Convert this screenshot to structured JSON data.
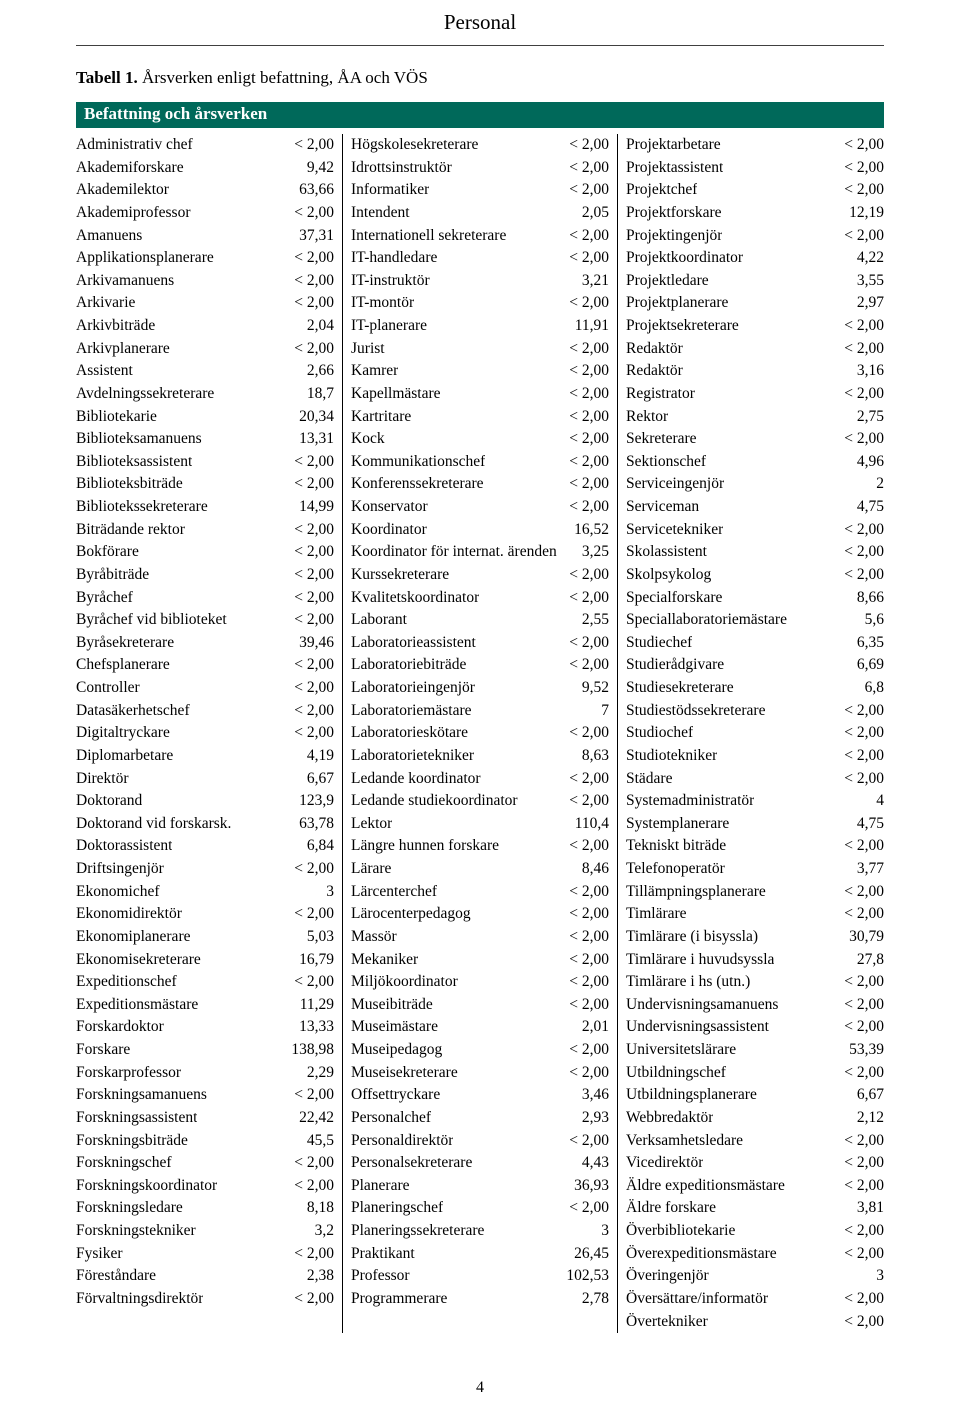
{
  "header": {
    "title": "Personal"
  },
  "caption": {
    "prefix": "Tabell 1.",
    "rest": " Årsverken enligt befattning, ÅA och VÖS"
  },
  "sectionTitle": "Befattning och årsverken",
  "footer": {
    "pageNumber": "4"
  },
  "columns": [
    [
      {
        "label": "Administrativ chef",
        "value": "< 2,00"
      },
      {
        "label": "Akademiforskare",
        "value": "9,42"
      },
      {
        "label": "Akademilektor",
        "value": "63,66"
      },
      {
        "label": "Akademiprofessor",
        "value": "< 2,00"
      },
      {
        "label": "Amanuens",
        "value": "37,31"
      },
      {
        "label": "Applikationsplanerare",
        "value": "< 2,00"
      },
      {
        "label": "Arkivamanuens",
        "value": "< 2,00"
      },
      {
        "label": "Arkivarie",
        "value": "< 2,00"
      },
      {
        "label": "Arkivbiträde",
        "value": "2,04"
      },
      {
        "label": "Arkivplanerare",
        "value": "< 2,00"
      },
      {
        "label": "Assistent",
        "value": "2,66"
      },
      {
        "label": "Avdelningssekreterare",
        "value": "18,7"
      },
      {
        "label": "Bibliotekarie",
        "value": "20,34"
      },
      {
        "label": "Biblioteksamanuens",
        "value": "13,31"
      },
      {
        "label": "Biblioteksassistent",
        "value": "< 2,00"
      },
      {
        "label": "Biblioteksbiträde",
        "value": "< 2,00"
      },
      {
        "label": "Bibliotekssekreterare",
        "value": "14,99"
      },
      {
        "label": "Biträdande rektor",
        "value": "< 2,00"
      },
      {
        "label": "Bokförare",
        "value": "< 2,00"
      },
      {
        "label": "Byråbiträde",
        "value": "< 2,00"
      },
      {
        "label": "Byråchef",
        "value": "< 2,00"
      },
      {
        "label": "Byråchef vid biblioteket",
        "value": "< 2,00"
      },
      {
        "label": "Byråsekreterare",
        "value": "39,46"
      },
      {
        "label": "Chefsplanerare",
        "value": "< 2,00"
      },
      {
        "label": "Controller",
        "value": "< 2,00"
      },
      {
        "label": "Datasäkerhetschef",
        "value": "< 2,00"
      },
      {
        "label": "Digitaltryckare",
        "value": "< 2,00"
      },
      {
        "label": "Diplomarbetare",
        "value": "4,19"
      },
      {
        "label": "Direktör",
        "value": "6,67"
      },
      {
        "label": "Doktorand",
        "value": "123,9"
      },
      {
        "label": "Doktorand vid forskarsk.",
        "value": "63,78"
      },
      {
        "label": "Doktorassistent",
        "value": "6,84"
      },
      {
        "label": "Driftsingenjör",
        "value": "< 2,00"
      },
      {
        "label": "Ekonomichef",
        "value": "3"
      },
      {
        "label": "Ekonomidirektör",
        "value": "< 2,00"
      },
      {
        "label": "Ekonomiplanerare",
        "value": "5,03"
      },
      {
        "label": "Ekonomisekreterare",
        "value": "16,79"
      },
      {
        "label": "Expeditionschef",
        "value": "< 2,00"
      },
      {
        "label": "Expeditionsmästare",
        "value": "11,29"
      },
      {
        "label": "Forskardoktor",
        "value": "13,33"
      },
      {
        "label": "Forskare",
        "value": "138,98"
      },
      {
        "label": "Forskarprofessor",
        "value": "2,29"
      },
      {
        "label": "Forskningsamanuens",
        "value": "< 2,00"
      },
      {
        "label": "Forskningsassistent",
        "value": "22,42"
      },
      {
        "label": "Forskningsbiträde",
        "value": "45,5"
      },
      {
        "label": "Forskningschef",
        "value": "< 2,00"
      },
      {
        "label": "Forskningskoordinator",
        "value": "< 2,00"
      },
      {
        "label": "Forskningsledare",
        "value": "8,18"
      },
      {
        "label": "Forskningstekniker",
        "value": "3,2"
      },
      {
        "label": "Fysiker",
        "value": "< 2,00"
      },
      {
        "label": "Föreståndare",
        "value": "2,38"
      },
      {
        "label": "Förvaltningsdirektör",
        "value": "< 2,00"
      }
    ],
    [
      {
        "label": "Högskolesekreterare",
        "value": "< 2,00"
      },
      {
        "label": "Idrottsinstruktör",
        "value": "< 2,00"
      },
      {
        "label": "Informatiker",
        "value": "< 2,00"
      },
      {
        "label": "Intendent",
        "value": "2,05"
      },
      {
        "label": "Internationell sekreterare",
        "value": "< 2,00"
      },
      {
        "label": "IT-handledare",
        "value": "< 2,00"
      },
      {
        "label": "IT-instruktör",
        "value": "3,21"
      },
      {
        "label": "IT-montör",
        "value": "< 2,00"
      },
      {
        "label": "IT-planerare",
        "value": "11,91"
      },
      {
        "label": "Jurist",
        "value": "< 2,00"
      },
      {
        "label": "Kamrer",
        "value": "< 2,00"
      },
      {
        "label": "Kapellmästare",
        "value": "< 2,00"
      },
      {
        "label": "Kartritare",
        "value": "< 2,00"
      },
      {
        "label": "Kock",
        "value": "< 2,00"
      },
      {
        "label": "Kommunikationschef",
        "value": "< 2,00"
      },
      {
        "label": "Konferenssekreterare",
        "value": "< 2,00"
      },
      {
        "label": "Konservator",
        "value": "< 2,00"
      },
      {
        "label": "Koordinator",
        "value": "16,52"
      },
      {
        "label": "Koordinator för internat. ärenden",
        "value": "3,25"
      },
      {
        "label": "Kurssekreterare",
        "value": "< 2,00"
      },
      {
        "label": "Kvalitetskoordinator",
        "value": "< 2,00"
      },
      {
        "label": "Laborant",
        "value": "2,55"
      },
      {
        "label": "Laboratorieassistent",
        "value": "< 2,00"
      },
      {
        "label": "Laboratoriebiträde",
        "value": "< 2,00"
      },
      {
        "label": "Laboratorieingenjör",
        "value": "9,52"
      },
      {
        "label": "Laboratoriemästare",
        "value": "7"
      },
      {
        "label": "Laboratorieskötare",
        "value": "< 2,00"
      },
      {
        "label": "Laboratorietekniker",
        "value": "8,63"
      },
      {
        "label": "Ledande koordinator",
        "value": "< 2,00"
      },
      {
        "label": "Ledande studiekoordinator",
        "value": "< 2,00"
      },
      {
        "label": "Lektor",
        "value": "110,4"
      },
      {
        "label": "Längre hunnen forskare",
        "value": "< 2,00"
      },
      {
        "label": "Lärare",
        "value": "8,46"
      },
      {
        "label": "Lärcenterchef",
        "value": "< 2,00"
      },
      {
        "label": "Lärocenterpedagog",
        "value": "< 2,00"
      },
      {
        "label": "Massör",
        "value": "< 2,00"
      },
      {
        "label": "Mekaniker",
        "value": "< 2,00"
      },
      {
        "label": "Miljökoordinator",
        "value": "< 2,00"
      },
      {
        "label": "Museibiträde",
        "value": "< 2,00"
      },
      {
        "label": "Museimästare",
        "value": "2,01"
      },
      {
        "label": "Museipedagog",
        "value": "< 2,00"
      },
      {
        "label": "Museisekreterare",
        "value": "< 2,00"
      },
      {
        "label": "Offsettryckare",
        "value": "3,46"
      },
      {
        "label": "Personalchef",
        "value": "2,93"
      },
      {
        "label": "Personaldirektör",
        "value": "< 2,00"
      },
      {
        "label": "Personalsekreterare",
        "value": "4,43"
      },
      {
        "label": "Planerare",
        "value": "36,93"
      },
      {
        "label": "Planeringschef",
        "value": "< 2,00"
      },
      {
        "label": "Planeringssekreterare",
        "value": "3"
      },
      {
        "label": "Praktikant",
        "value": "26,45"
      },
      {
        "label": "Professor",
        "value": "102,53"
      },
      {
        "label": "Programmerare",
        "value": "2,78"
      }
    ],
    [
      {
        "label": "Projektarbetare",
        "value": "< 2,00"
      },
      {
        "label": "Projektassistent",
        "value": "< 2,00"
      },
      {
        "label": "Projektchef",
        "value": "< 2,00"
      },
      {
        "label": "Projektforskare",
        "value": "12,19"
      },
      {
        "label": "Projektingenjör",
        "value": "< 2,00"
      },
      {
        "label": "Projektkoordinator",
        "value": "4,22"
      },
      {
        "label": "Projektledare",
        "value": "3,55"
      },
      {
        "label": "Projektplanerare",
        "value": "2,97"
      },
      {
        "label": "Projektsekreterare",
        "value": "< 2,00"
      },
      {
        "label": "Redaktör",
        "value": "< 2,00"
      },
      {
        "label": "Redaktör",
        "value": "3,16"
      },
      {
        "label": "Registrator",
        "value": "< 2,00"
      },
      {
        "label": "Rektor",
        "value": "2,75"
      },
      {
        "label": "Sekreterare",
        "value": "< 2,00"
      },
      {
        "label": "Sektionschef",
        "value": "4,96"
      },
      {
        "label": "Serviceingenjör",
        "value": "2"
      },
      {
        "label": "Serviceman",
        "value": "4,75"
      },
      {
        "label": "Servicetekniker",
        "value": "< 2,00"
      },
      {
        "label": "Skolassistent",
        "value": "< 2,00"
      },
      {
        "label": "Skolpsykolog",
        "value": "< 2,00"
      },
      {
        "label": "Specialforskare",
        "value": "8,66"
      },
      {
        "label": "Speciallaboratoriemästare",
        "value": "5,6"
      },
      {
        "label": "Studiechef",
        "value": "6,35"
      },
      {
        "label": "Studierådgivare",
        "value": "6,69"
      },
      {
        "label": "Studiesekreterare",
        "value": "6,8"
      },
      {
        "label": "Studiestödssekreterare",
        "value": "< 2,00"
      },
      {
        "label": "Studiochef",
        "value": "< 2,00"
      },
      {
        "label": "Studiotekniker",
        "value": "< 2,00"
      },
      {
        "label": "Städare",
        "value": "< 2,00"
      },
      {
        "label": "Systemadministratör",
        "value": "4"
      },
      {
        "label": "Systemplanerare",
        "value": "4,75"
      },
      {
        "label": "Tekniskt biträde",
        "value": "< 2,00"
      },
      {
        "label": "Telefonoperatör",
        "value": "3,77"
      },
      {
        "label": "Tillämpningsplanerare",
        "value": "< 2,00"
      },
      {
        "label": "Timlärare",
        "value": "< 2,00"
      },
      {
        "label": "Timlärare (i bisyssla)",
        "value": "30,79"
      },
      {
        "label": "Timlärare i huvudsyssla",
        "value": "27,8"
      },
      {
        "label": "Timlärare i hs (utn.)",
        "value": "< 2,00"
      },
      {
        "label": "Undervisningsamanuens",
        "value": "< 2,00"
      },
      {
        "label": "Undervisningsassistent",
        "value": "< 2,00"
      },
      {
        "label": "Universitetslärare",
        "value": "53,39"
      },
      {
        "label": "Utbildningschef",
        "value": "< 2,00"
      },
      {
        "label": "Utbildningsplanerare",
        "value": "6,67"
      },
      {
        "label": "Webbredaktör",
        "value": "2,12"
      },
      {
        "label": "Verksamhetsledare",
        "value": "< 2,00"
      },
      {
        "label": "Vicedirektör",
        "value": "< 2,00"
      },
      {
        "label": "Äldre expeditionsmästare",
        "value": "< 2,00"
      },
      {
        "label": "Äldre forskare",
        "value": "3,81"
      },
      {
        "label": "Överbibliotekarie",
        "value": "< 2,00"
      },
      {
        "label": "Överexpeditionsmästare",
        "value": "< 2,00"
      },
      {
        "label": "Överingenjör",
        "value": "3"
      },
      {
        "label": "Översättare/informatör",
        "value": "< 2,00"
      },
      {
        "label": "Övertekniker",
        "value": "< 2,00"
      }
    ]
  ]
}
